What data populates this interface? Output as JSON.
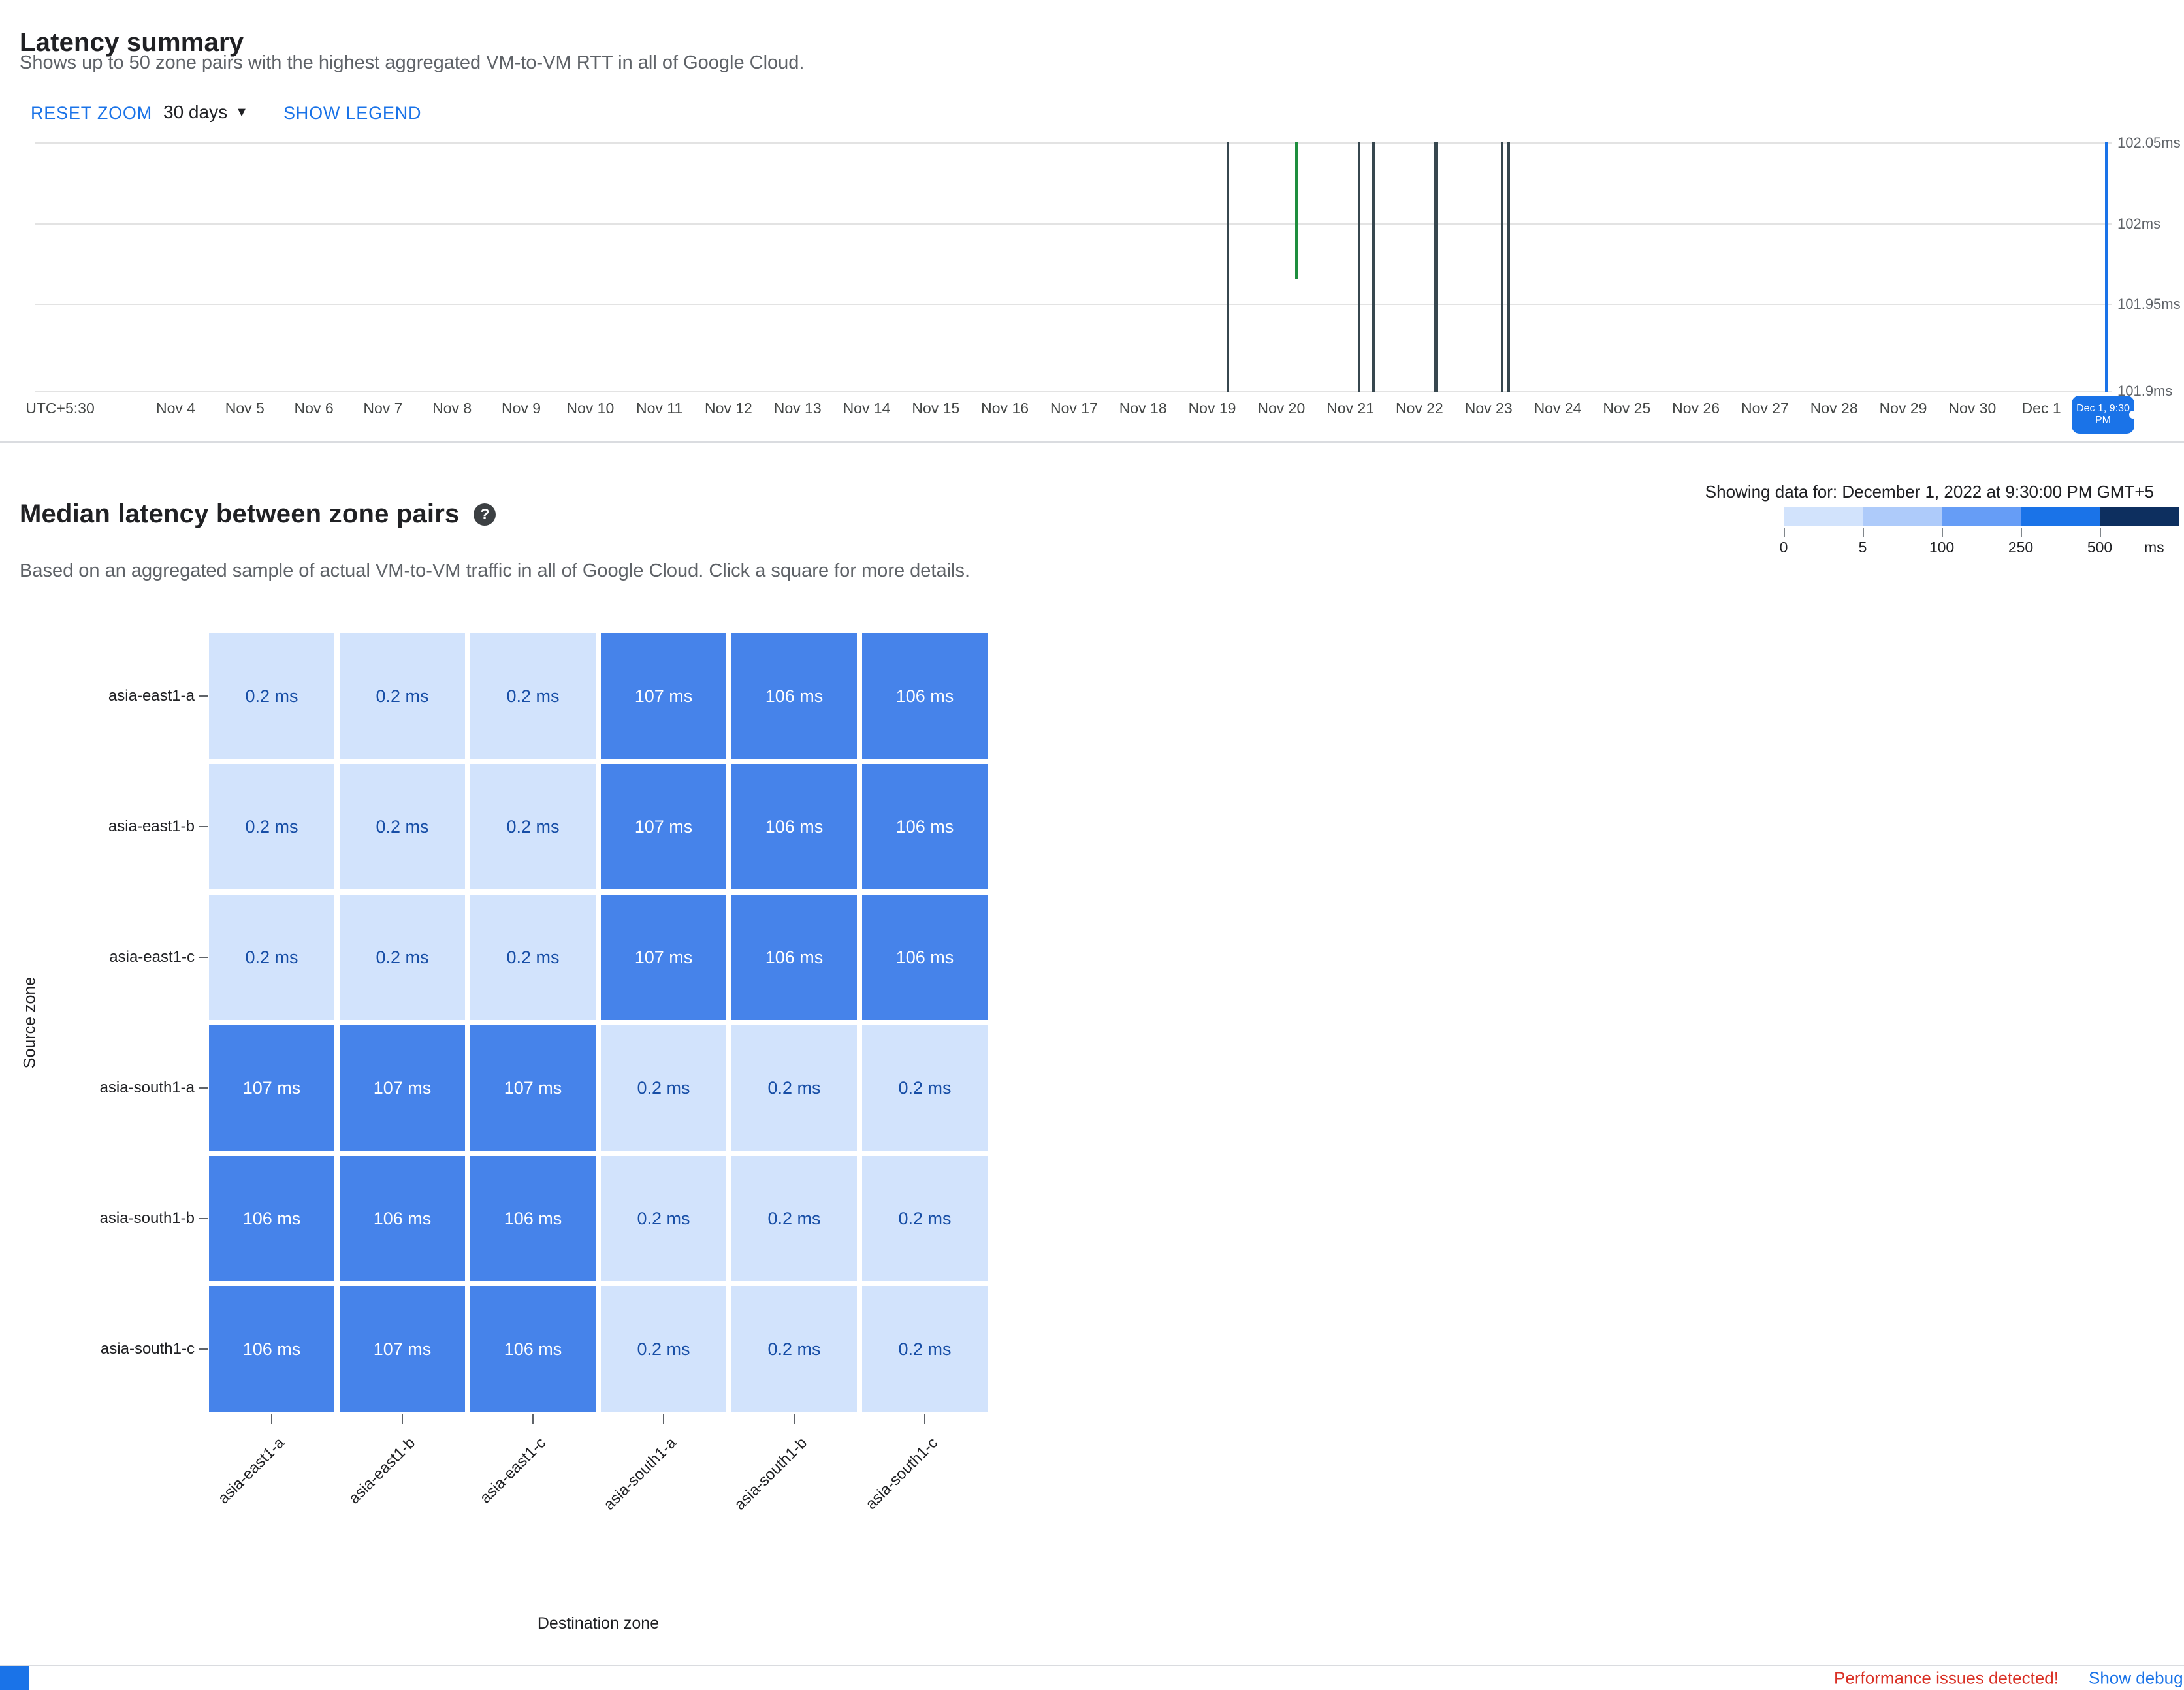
{
  "latency_summary": {
    "title": "Latency summary",
    "subtitle": "Shows up to 50 zone pairs with the highest aggregated VM-to-VM RTT in all of Google Cloud.",
    "toolbar": {
      "reset_zoom_label": "RESET ZOOM",
      "time_range_value": "30 days",
      "show_legend_label": "SHOW LEGEND"
    },
    "chart_data": {
      "type": "line",
      "timezone_label": "UTC+5:30",
      "x_tick_labels": [
        "Nov 4",
        "Nov 5",
        "Nov 6",
        "Nov 7",
        "Nov 8",
        "Nov 9",
        "Nov 10",
        "Nov 11",
        "Nov 12",
        "Nov 13",
        "Nov 14",
        "Nov 15",
        "Nov 16",
        "Nov 17",
        "Nov 18",
        "Nov 19",
        "Nov 20",
        "Nov 21",
        "Nov 22",
        "Nov 23",
        "Nov 24",
        "Nov 25",
        "Nov 26",
        "Nov 27",
        "Nov 28",
        "Nov 29",
        "Nov 30",
        "Dec 1"
      ],
      "y_tick_labels": [
        "102.05ms",
        "102ms",
        "101.95ms",
        "101.9ms"
      ],
      "ylim_ms": [
        101.9,
        102.05
      ],
      "selected_time": "Dec 1, 9:30 PM",
      "spikes": [
        {
          "date": "Nov 19",
          "x_pct": 57.4,
          "top_pct": 0,
          "height_pct": 100,
          "width": 4,
          "color": "#37474f"
        },
        {
          "date": "Nov 20",
          "x_pct": 60.7,
          "top_pct": 0,
          "height_pct": 55,
          "width": 4,
          "color": "#1e8e3e"
        },
        {
          "date": "Nov 21",
          "x_pct": 63.7,
          "top_pct": 0,
          "height_pct": 100,
          "width": 4,
          "color": "#37474f"
        },
        {
          "date": "Nov 21",
          "x_pct": 64.4,
          "top_pct": 0,
          "height_pct": 100,
          "width": 4,
          "color": "#37474f"
        },
        {
          "date": "Nov 22",
          "x_pct": 67.4,
          "top_pct": 0,
          "height_pct": 100,
          "width": 6,
          "color": "#37474f"
        },
        {
          "date": "Nov 23",
          "x_pct": 70.6,
          "top_pct": 0,
          "height_pct": 100,
          "width": 4,
          "color": "#37474f"
        },
        {
          "date": "Nov 23",
          "x_pct": 70.9,
          "top_pct": 0,
          "height_pct": 100,
          "width": 4,
          "color": "#37474f"
        },
        {
          "date": "Dec 1",
          "x_pct": 99.7,
          "top_pct": 0,
          "height_pct": 100,
          "width": 4,
          "color": "#1a73e8"
        }
      ]
    }
  },
  "heatmap": {
    "title": "Median latency between zone pairs",
    "help_icon": "?",
    "subtitle": "Based on an aggregated sample of actual VM-to-VM traffic in all of Google Cloud. Click a square for more details.",
    "showing_data_for": "Showing data for: December 1, 2022 at 9:30:00 PM GMT+5",
    "source_axis_label": "Source zone",
    "destination_axis_label": "Destination zone",
    "legend": {
      "tick_labels": [
        "0",
        "5",
        "100",
        "250",
        "500"
      ],
      "unit": "ms",
      "colors": [
        "#d2e3fc",
        "#aecbfa",
        "#669df6",
        "#1a73e8",
        "#0d2f5f"
      ]
    },
    "chart_data": {
      "type": "heatmap",
      "rows": [
        "asia-east1-a",
        "asia-east1-b",
        "asia-east1-c",
        "asia-south1-a",
        "asia-south1-b",
        "asia-south1-c"
      ],
      "cols": [
        "asia-east1-a",
        "asia-east1-b",
        "asia-east1-c",
        "asia-south1-a",
        "asia-south1-b",
        "asia-south1-c"
      ],
      "unit": "ms",
      "threshold_ms": 5,
      "low_color": "#d2e3fc",
      "high_color": "#4683ea",
      "values": [
        [
          0.2,
          0.2,
          0.2,
          107,
          106,
          106
        ],
        [
          0.2,
          0.2,
          0.2,
          107,
          106,
          106
        ],
        [
          0.2,
          0.2,
          0.2,
          107,
          106,
          106
        ],
        [
          107,
          107,
          107,
          0.2,
          0.2,
          0.2
        ],
        [
          106,
          106,
          106,
          0.2,
          0.2,
          0.2
        ],
        [
          106,
          107,
          106,
          0.2,
          0.2,
          0.2
        ]
      ]
    }
  },
  "status_bar": {
    "warning_text": "Performance issues detected!",
    "debug_link_label": "Show debug p",
    "accent_color": "#1a73e8"
  }
}
